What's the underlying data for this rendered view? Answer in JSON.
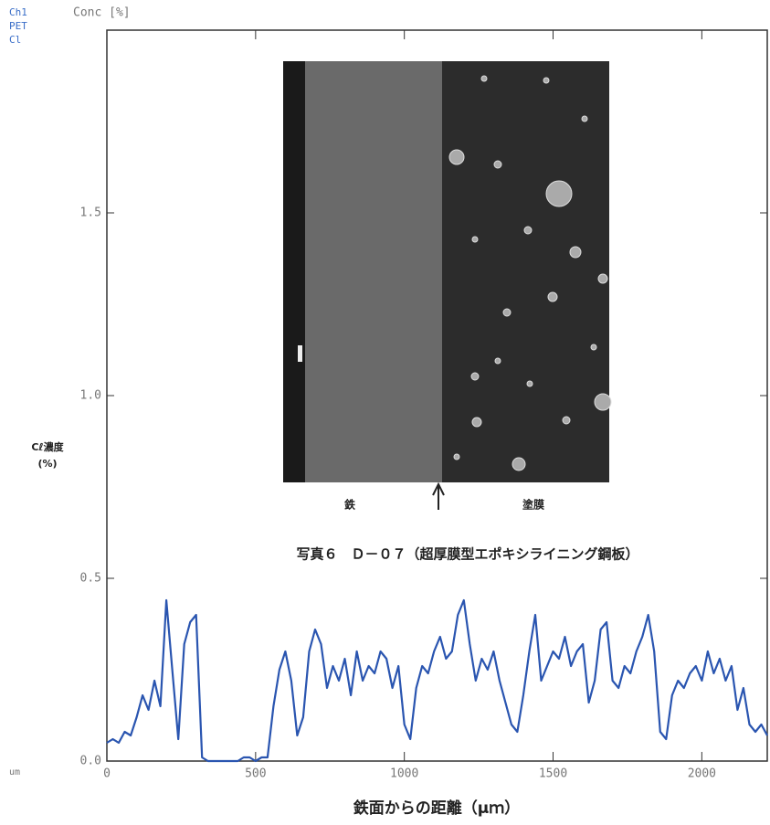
{
  "chart_data": {
    "type": "line",
    "annotations": [
      "Ch1",
      "PET",
      "Cl",
      "Conc [%]",
      "um",
      "写真６　Ｄ－０７（超厚膜型エポキシライニング鋼板）",
      "鉄",
      "塗膜"
    ],
    "y_label": [
      "Cℓ濃度",
      "(%)"
    ],
    "x_label": "鉄面からの距離（μｍ）",
    "x": [
      0,
      20,
      40,
      60,
      80,
      100,
      120,
      140,
      160,
      180,
      200,
      220,
      240,
      260,
      280,
      300,
      320,
      340,
      360,
      380,
      400,
      420,
      440,
      460,
      480,
      500,
      520,
      540,
      560,
      580,
      600,
      620,
      640,
      660,
      680,
      700,
      720,
      740,
      760,
      780,
      800,
      820,
      840,
      860,
      880,
      900,
      920,
      940,
      960,
      980,
      1000,
      1020,
      1040,
      1060,
      1080,
      1100,
      1120,
      1140,
      1160,
      1180,
      1200,
      1220,
      1240,
      1260,
      1280,
      1300,
      1320,
      1340,
      1360,
      1380,
      1400,
      1420,
      1440,
      1460,
      1480,
      1500,
      1520,
      1540,
      1560,
      1580,
      1600,
      1620,
      1640,
      1660,
      1680,
      1700,
      1720,
      1740,
      1760,
      1780,
      1800,
      1820,
      1840,
      1860,
      1880,
      1900,
      1920,
      1940,
      1960,
      1980,
      2000,
      2020,
      2040,
      2060,
      2080,
      2100,
      2120,
      2140,
      2160,
      2180,
      2200,
      2220
    ],
    "series": [
      {
        "color": "#2a55b0",
        "values": [
          0.05,
          0.06,
          0.05,
          0.08,
          0.07,
          0.12,
          0.18,
          0.14,
          0.22,
          0.15,
          0.44,
          0.25,
          0.06,
          0.32,
          0.38,
          0.4,
          0.01,
          0.0,
          0.0,
          0.0,
          0,
          0,
          0,
          0.01,
          0.01,
          0,
          0.01,
          0.01,
          0.15,
          0.25,
          0.3,
          0.22,
          0.07,
          0.12,
          0.3,
          0.36,
          0.32,
          0.2,
          0.26,
          0.22,
          0.28,
          0.18,
          0.3,
          0.22,
          0.26,
          0.24,
          0.3,
          0.28,
          0.2,
          0.26,
          0.1,
          0.06,
          0.2,
          0.26,
          0.24,
          0.3,
          0.34,
          0.28,
          0.3,
          0.4,
          0.44,
          0.32,
          0.22,
          0.28,
          0.25,
          0.3,
          0.22,
          0.16,
          0.1,
          0.08,
          0.18,
          0.3,
          0.4,
          0.22,
          0.26,
          0.3,
          0.28,
          0.34,
          0.26,
          0.3,
          0.32,
          0.16,
          0.22,
          0.36,
          0.38,
          0.22,
          0.2,
          0.26,
          0.24,
          0.3,
          0.34,
          0.4,
          0.3,
          0.08,
          0.06,
          0.18,
          0.22,
          0.2,
          0.24,
          0.26,
          0.22,
          0.3,
          0.24,
          0.28,
          0.22,
          0.26,
          0.14,
          0.2,
          0.1,
          0.08,
          0.1,
          0.07
        ]
      }
    ],
    "xlim": [
      0,
      2220
    ],
    "ylim": [
      0,
      2.0
    ],
    "xticks": [
      0,
      500,
      1000,
      1500,
      2000
    ],
    "yticks": [
      {
        "value": 0,
        "label": "0.0"
      },
      0.5,
      {
        "value": 1,
        "label": "1.0"
      },
      1.5
    ]
  }
}
